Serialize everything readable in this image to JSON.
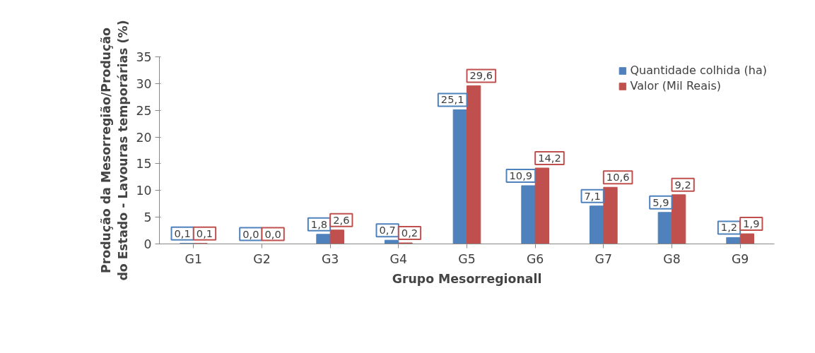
{
  "chart_data": {
    "type": "bar",
    "xlabel": "Grupo Mesorregionall",
    "ylabel": "Produção da Mesorregião/Produção do Estado - Lavouras temporárias (%)",
    "categories": [
      "G1",
      "G2",
      "G3",
      "G4",
      "G5",
      "G6",
      "G7",
      "G8",
      "G9"
    ],
    "series": [
      {
        "name": "Quantidade colhida (ha)",
        "color": "#4f81bd",
        "values": [
          0.1,
          0.0,
          1.8,
          0.7,
          25.1,
          10.9,
          7.1,
          5.9,
          1.2
        ],
        "value_labels": [
          "0,1",
          "0,0",
          "1,8",
          "0,7",
          "25,1",
          "10,9",
          "7,1",
          "5,9",
          "1,2"
        ]
      },
      {
        "name": "Valor (Mil Reais)",
        "color": "#c0504d",
        "values": [
          0.1,
          0.0,
          2.6,
          0.2,
          29.6,
          14.2,
          10.6,
          9.2,
          1.9
        ],
        "value_labels": [
          "0,1",
          "0,0",
          "2,6",
          "0,2",
          "29,6",
          "14,2",
          "10,6",
          "9,2",
          "1,9"
        ]
      }
    ],
    "ylim": [
      0,
      35
    ],
    "yticks": [
      0,
      5,
      10,
      15,
      20,
      25,
      30,
      35
    ],
    "grid": false,
    "legend": "top right"
  }
}
